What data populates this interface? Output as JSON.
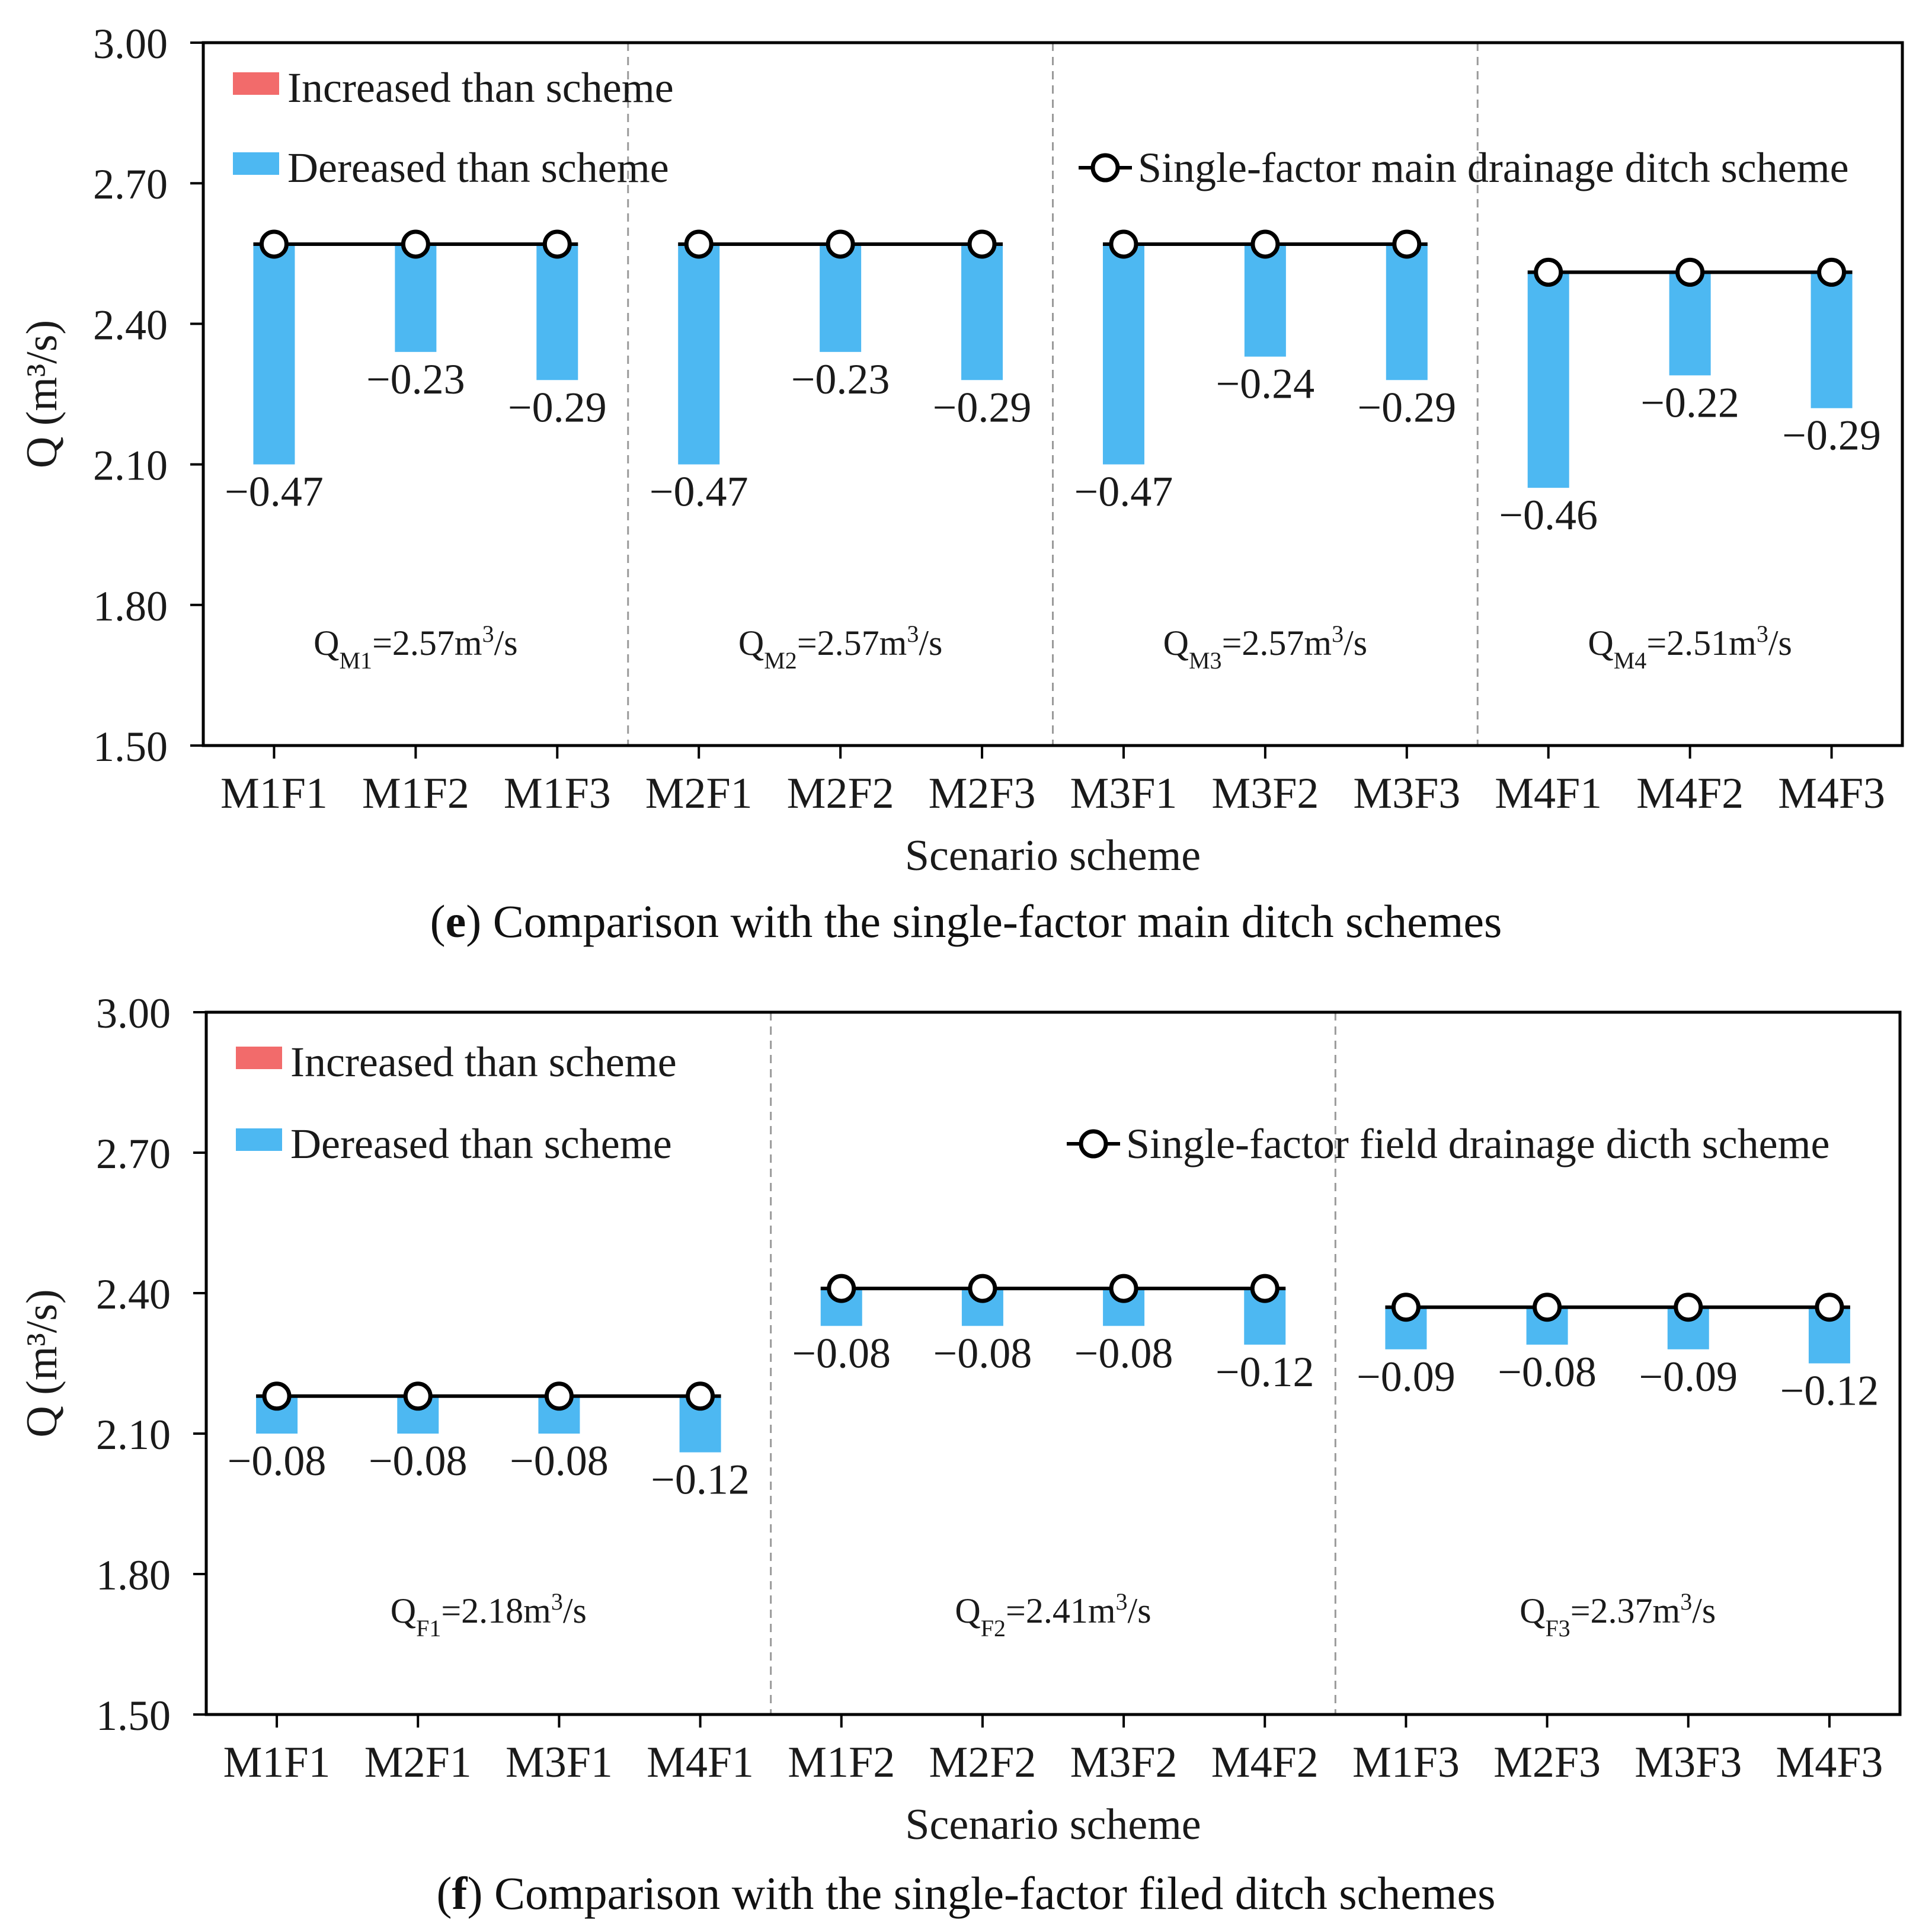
{
  "colors": {
    "increased": "#f26b6b",
    "decreased": "#4db8f2",
    "axis": "#000000",
    "divider": "#9a9a9a"
  },
  "chart_data": [
    {
      "type": "bar",
      "panel_letter": "e",
      "caption_text": " Comparison with the single-factor main ditch schemes",
      "ylabel": "Q (m³/s)",
      "xlabel": "Scenario scheme",
      "ylim": [
        1.5,
        3.0
      ],
      "yticks": [
        "1.50",
        "1.80",
        "2.10",
        "2.40",
        "2.70",
        "3.00"
      ],
      "ytick_values": [
        1.5,
        1.8,
        2.1,
        2.4,
        2.7,
        3.0
      ],
      "legend_increased": "Increased than scheme",
      "legend_decreased": "Dereased than scheme",
      "legend_line": "Single-factor main drainage ditch scheme",
      "groups": [
        {
          "q_sym": "Q",
          "q_sub": "M1",
          "q_val": "=2.57m",
          "q_sup": "3",
          "q_unit": "/s",
          "baseline": 2.57,
          "categories": [
            "M1F1",
            "M1F2",
            "M1F3"
          ],
          "labels": [
            "−0.47",
            "−0.23",
            "−0.29"
          ],
          "deltas": [
            -0.47,
            -0.23,
            -0.29
          ]
        },
        {
          "q_sym": "Q",
          "q_sub": "M2",
          "q_val": "=2.57m",
          "q_sup": "3",
          "q_unit": "/s",
          "baseline": 2.57,
          "categories": [
            "M2F1",
            "M2F2",
            "M2F3"
          ],
          "labels": [
            "−0.47",
            "−0.23",
            "−0.29"
          ],
          "deltas": [
            -0.47,
            -0.23,
            -0.29
          ]
        },
        {
          "q_sym": "Q",
          "q_sub": "M3",
          "q_val": "=2.57m",
          "q_sup": "3",
          "q_unit": "/s",
          "baseline": 2.57,
          "categories": [
            "M3F1",
            "M3F2",
            "M3F3"
          ],
          "labels": [
            "−0.47",
            "−0.24",
            "−0.29"
          ],
          "deltas": [
            -0.47,
            -0.24,
            -0.29
          ]
        },
        {
          "q_sym": "Q",
          "q_sub": "M4",
          "q_val": "=2.51m",
          "q_sup": "3",
          "q_unit": "/s",
          "baseline": 2.51,
          "categories": [
            "M4F1",
            "M4F2",
            "M4F3"
          ],
          "labels": [
            "−0.46",
            "−0.22",
            "−0.29"
          ],
          "deltas": [
            -0.46,
            -0.22,
            -0.29
          ]
        }
      ]
    },
    {
      "type": "bar",
      "panel_letter": "f",
      "caption_text": " Comparison with the single-factor filed ditch schemes",
      "ylabel": "Q (m³/s)",
      "xlabel": "Scenario scheme",
      "ylim": [
        1.5,
        3.0
      ],
      "yticks": [
        "1.50",
        "1.80",
        "2.10",
        "2.40",
        "2.70",
        "3.00"
      ],
      "ytick_values": [
        1.5,
        1.8,
        2.1,
        2.4,
        2.7,
        3.0
      ],
      "legend_increased": "Increased than scheme",
      "legend_decreased": "Dereased than scheme",
      "legend_line": "Single-factor field  drainage dicth scheme",
      "groups": [
        {
          "q_sym": "Q",
          "q_sub": "F1",
          "q_val": "=2.18m",
          "q_sup": "3",
          "q_unit": "/s",
          "baseline": 2.18,
          "categories": [
            "M1F1",
            "M2F1",
            "M3F1",
            "M4F1"
          ],
          "labels": [
            "−0.08",
            "−0.08",
            "−0.08",
            "−0.12"
          ],
          "deltas": [
            -0.08,
            -0.08,
            -0.08,
            -0.12
          ]
        },
        {
          "q_sym": "Q",
          "q_sub": "F2",
          "q_val": "=2.41m",
          "q_sup": "3",
          "q_unit": "/s",
          "baseline": 2.41,
          "categories": [
            "M1F2",
            "M2F2",
            "M3F2",
            "M4F2"
          ],
          "labels": [
            "−0.08",
            "−0.08",
            "−0.08",
            "−0.12"
          ],
          "deltas": [
            -0.08,
            -0.08,
            -0.08,
            -0.12
          ]
        },
        {
          "q_sym": "Q",
          "q_sub": "F3",
          "q_val": "=2.37m",
          "q_sup": "3",
          "q_unit": "/s",
          "baseline": 2.37,
          "categories": [
            "M1F3",
            "M2F3",
            "M3F3",
            "M4F3"
          ],
          "labels": [
            "−0.09",
            "−0.08",
            "−0.09",
            "−0.12"
          ],
          "deltas": [
            -0.09,
            -0.08,
            -0.09,
            -0.12
          ]
        }
      ]
    }
  ]
}
